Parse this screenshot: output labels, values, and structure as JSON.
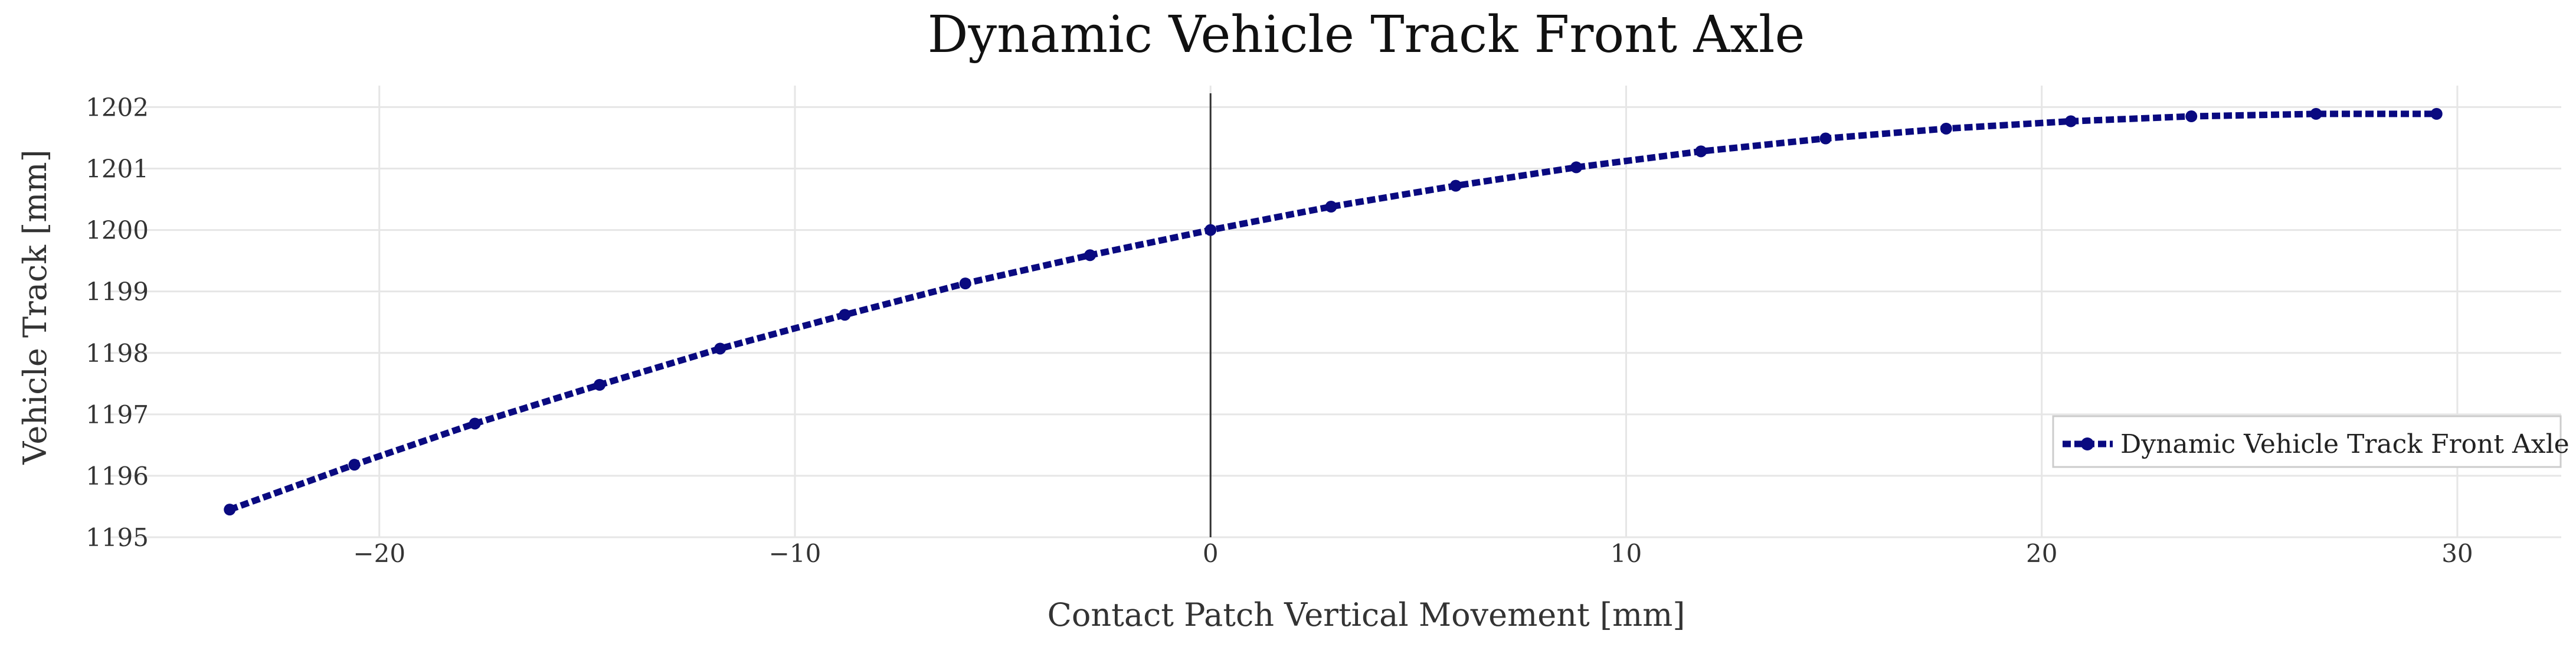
{
  "chart_data": {
    "type": "line",
    "title": "Dynamic Vehicle Track Front Axle",
    "xlabel": "Contact Patch Vertical Movement [mm]",
    "ylabel": "Vehicle Track [mm]",
    "xlim": [
      -26.5,
      32.5
    ],
    "ylim": [
      1195,
      1202.35
    ],
    "xticks": [
      -20,
      -10,
      0,
      10,
      20,
      30
    ],
    "xtick_labels": [
      "−20",
      "−10",
      "0",
      "10",
      "20",
      "30"
    ],
    "yticks": [
      1195,
      1196,
      1197,
      1198,
      1199,
      1200,
      1201,
      1202
    ],
    "ytick_labels": [
      "1195",
      "1196",
      "1197",
      "1198",
      "1199",
      "1200",
      "1201",
      "1202"
    ],
    "grid": true,
    "zero_line_x": 0,
    "legend": {
      "position": "bottom-right"
    },
    "series": [
      {
        "name": "Dynamic Vehicle Track Front Axle",
        "color": "#0a0a80",
        "style": "dotted-line-with-markers",
        "x": [
          -23.6,
          -20.6,
          -17.7,
          -14.7,
          -11.8,
          -8.8,
          -5.9,
          -2.9,
          0,
          2.9,
          5.9,
          8.8,
          11.8,
          14.8,
          17.7,
          20.7,
          23.6,
          26.6,
          29.5
        ],
        "y": [
          1195.45,
          1196.18,
          1196.85,
          1197.48,
          1198.07,
          1198.62,
          1199.13,
          1199.59,
          1200.0,
          1200.38,
          1200.72,
          1201.02,
          1201.28,
          1201.49,
          1201.65,
          1201.77,
          1201.85,
          1201.89,
          1201.89
        ]
      }
    ]
  }
}
